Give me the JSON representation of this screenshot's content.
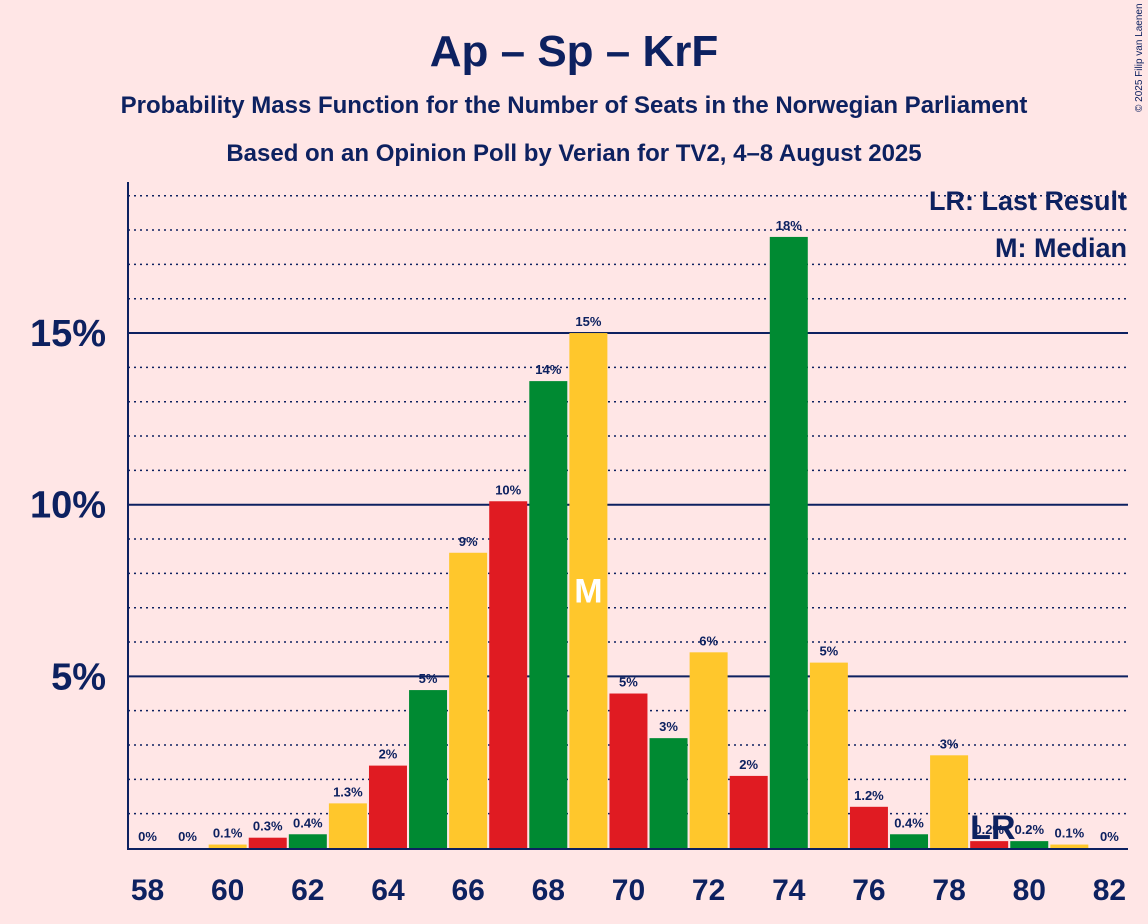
{
  "title": "Ap – Sp – KrF",
  "subtitle1": "Probability Mass Function for the Number of Seats in the Norwegian Parliament",
  "subtitle2": "Based on an Opinion Poll by Verian for TV2, 4–8 August 2025",
  "copyright": "© 2025 Filip van Laenen",
  "legend": {
    "lr": "LR: Last Result",
    "m": "M: Median"
  },
  "colors": {
    "red": "#e01b22",
    "green": "#008a32",
    "yellow": "#ffc72c",
    "axis": "#0d2160",
    "background": "#ffe6e6"
  },
  "chart_data": {
    "type": "bar",
    "categories": [
      58,
      59,
      60,
      61,
      62,
      63,
      64,
      65,
      66,
      67,
      68,
      69,
      70,
      71,
      72,
      73,
      74,
      75,
      76,
      77,
      78,
      79,
      80,
      81,
      82
    ],
    "x_tick_labels": [
      "58",
      "60",
      "62",
      "64",
      "66",
      "68",
      "70",
      "72",
      "74",
      "76",
      "78",
      "80",
      "82"
    ],
    "values": [
      0,
      0,
      0.1,
      0.3,
      0.4,
      1.3,
      2.4,
      4.6,
      8.6,
      10.1,
      13.6,
      15.0,
      4.5,
      3.2,
      5.7,
      2.1,
      17.8,
      5.4,
      1.2,
      0.4,
      2.7,
      0.2,
      0.2,
      0.1,
      0
    ],
    "labels": [
      "0%",
      "0%",
      "0.1%",
      "0.3%",
      "0.4%",
      "1.3%",
      "2%",
      "5%",
      "9%",
      "10%",
      "14%",
      "15%",
      "5%",
      "3%",
      "6%",
      "2%",
      "18%",
      "5%",
      "1.2%",
      "0.4%",
      "3%",
      "0.2%",
      "0.2%",
      "0.1%",
      "0%"
    ],
    "color_cycle": [
      "red",
      "green",
      "yellow"
    ],
    "y_ticks": [
      "5%",
      "10%",
      "15%"
    ],
    "y_tick_values": [
      5,
      10,
      15
    ],
    "ylim": [
      0,
      19.4
    ],
    "minor_grid_step": 1,
    "median_seat": 69,
    "median_mark": "M",
    "last_result_seat": 79,
    "last_result_mark": "LR"
  }
}
